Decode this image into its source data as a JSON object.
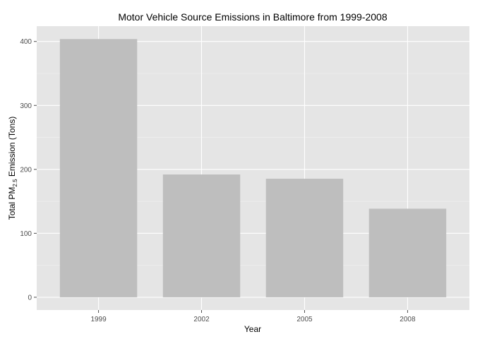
{
  "chart_data": {
    "type": "bar",
    "title": "Motor Vehicle Source Emissions in Baltimore from 1999-2008",
    "categories": [
      "1999",
      "2002",
      "2005",
      "2008"
    ],
    "values": [
      403.8,
      192.0,
      185.4,
      138.5
    ],
    "xlabel": "Year",
    "ylabel": {
      "prefix": "Total PM",
      "subscript": "2.5",
      "suffix": " Emission (Tons)"
    },
    "yticks": [
      0,
      100,
      200,
      300,
      400
    ],
    "ylim": [
      -20,
      424
    ],
    "grid": true,
    "colors": {
      "panel": "#e5e5e5",
      "grid_major": "#ffffff",
      "grid_minor": "#f2f2f2",
      "bar": "#bebebe",
      "tick": "#4d4d4d"
    }
  }
}
